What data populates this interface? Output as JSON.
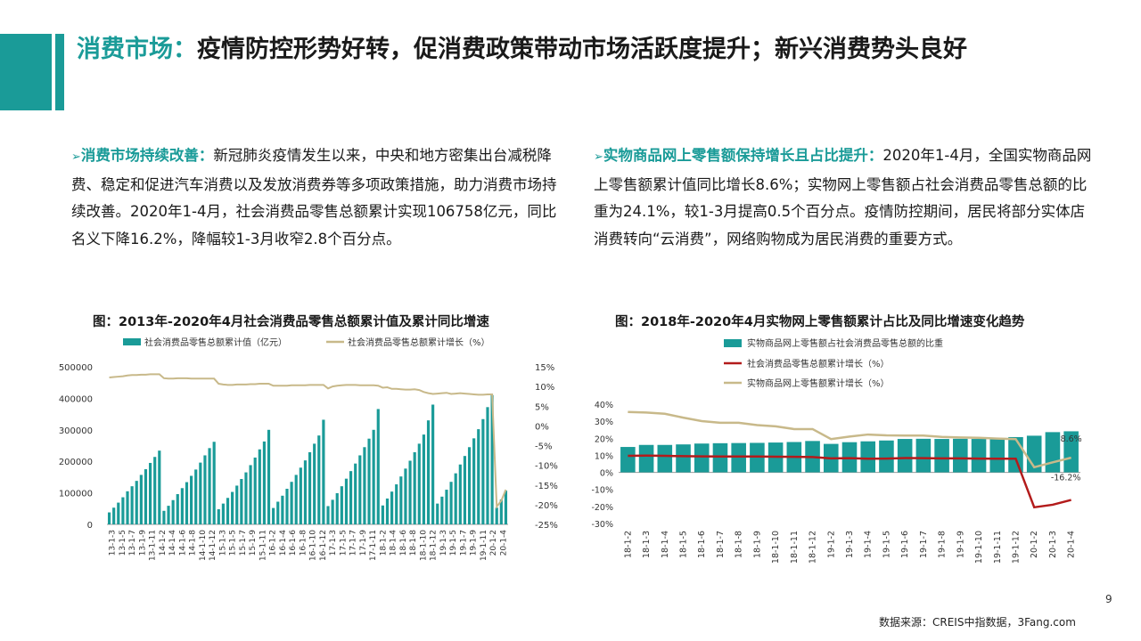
{
  "header": {
    "title_highlight": "消费市场：",
    "title_rest": "疫情防控形势好转，促消费政策带动市场活跃度提升；新兴消费势头良好"
  },
  "left_text": {
    "arrow": "➢",
    "lead": "消费市场持续改善：",
    "body": "新冠肺炎疫情发生以来，中央和地方密集出台减税降费、稳定和促进汽车消费以及发放消费券等多项政策措施，助力消费市场持续改善。2020年1-4月，社会消费品零售总额累计实现106758亿元，同比名义下降16.2%，降幅较1-3月收窄2.8个百分点。"
  },
  "right_text": {
    "arrow": "➢",
    "lead": "实物商品网上零售额保持增长且占比提升：",
    "body": "2020年1-4月，全国实物商品网上零售额累计值同比增长8.6%；实物网上零售额占社会消费品零售总额的比重为24.1%，较1-3月提高0.5个百分点。疫情防控期间，居民将部分实体店消费转向“云消费”，网络购物成为居民消费的重要方式。"
  },
  "colors": {
    "teal": "#1a9b98",
    "tan": "#c8b98a",
    "darkred": "#b31b1b"
  },
  "chart_data": [
    {
      "type": "bar",
      "title": "图：2013年-2020年4月社会消费品零售总额累计值及累计同比增速",
      "legend": [
        "社会消费品零售总额累计值（亿元）",
        "社会消费品零售总额累计增长（%）"
      ],
      "y_ticks": [
        "500000",
        "400000",
        "300000",
        "200000",
        "100000",
        "0"
      ],
      "y2_ticks": [
        "15%",
        "10%",
        "5%",
        "0%",
        "-5%",
        "-10%",
        "-15%",
        "-20%",
        "-25%"
      ],
      "ylim": [
        0,
        500000
      ],
      "y2lim": [
        -25,
        15
      ],
      "x_labels": [
        "13-1-3",
        "13-1-5",
        "13-1-7",
        "13-1-9",
        "13-1-11",
        "14-1-2",
        "14-1-4",
        "14-1-6",
        "14-1-8",
        "14-1-10",
        "14-1-12",
        "15-1-3",
        "15-1-5",
        "15-1-7",
        "15-1-9",
        "15-1-11",
        "16-1-2",
        "16-1-4",
        "16-1-6",
        "16-1-8",
        "16-1-10",
        "16-1-12",
        "17-1-3",
        "17-1-5",
        "17-1-7",
        "17-1-9",
        "17-1-11",
        "18-1-2",
        "18-1-4",
        "18-1-6",
        "18-1-8",
        "18-1-10",
        "18-1-12",
        "19-1-3",
        "19-1-5",
        "19-1-7",
        "19-1-9",
        "19-1-11",
        "20-1-2",
        "20-1-4"
      ],
      "values": [
        38000,
        53000,
        69000,
        86000,
        105000,
        121000,
        138000,
        157000,
        175000,
        195000,
        214000,
        234000,
        43000,
        59000,
        77000,
        96000,
        115000,
        134000,
        154000,
        174000,
        196000,
        219000,
        242000,
        262000,
        48000,
        66000,
        84000,
        103000,
        123000,
        144000,
        165000,
        188000,
        212000,
        238000,
        263000,
        300000,
        52000,
        72000,
        91000,
        113000,
        135000,
        157000,
        180000,
        203000,
        229000,
        256000,
        282000,
        332000,
        58000,
        78000,
        99000,
        121000,
        145000,
        169000,
        193000,
        219000,
        245000,
        272000,
        300000,
        366000,
        60000,
        82000,
        104000,
        127000,
        152000,
        177000,
        202000,
        229000,
        256000,
        285000,
        330000,
        380000,
        66000,
        88000,
        110000,
        135000,
        162000,
        190000,
        217000,
        245000,
        273000,
        302000,
        334000,
        372000,
        410000,
        53000,
        79000,
        107000
      ],
      "growth": [
        12.3,
        12.4,
        12.5,
        12.6,
        12.8,
        12.9,
        12.9,
        13.0,
        13.0,
        13.1,
        13.1,
        13.1,
        12.1,
        12.0,
        12.0,
        12.1,
        12.1,
        12.1,
        12.0,
        12.0,
        12.0,
        12.0,
        12.0,
        12.0,
        10.7,
        10.5,
        10.4,
        10.4,
        10.5,
        10.5,
        10.5,
        10.6,
        10.6,
        10.7,
        10.7,
        10.7,
        10.2,
        10.2,
        10.2,
        10.2,
        10.3,
        10.3,
        10.3,
        10.3,
        10.4,
        10.4,
        10.4,
        10.4,
        9.5,
        10.0,
        10.2,
        10.3,
        10.4,
        10.4,
        10.4,
        10.3,
        10.3,
        10.3,
        10.3,
        10.2,
        9.7,
        9.8,
        9.4,
        9.4,
        9.3,
        9.2,
        9.2,
        9.3,
        9.1,
        8.6,
        8.3,
        8.1,
        8.2,
        8.3,
        8.4,
        8.1,
        8.2,
        8.3,
        8.2,
        8.1,
        8.0,
        7.9,
        7.9,
        8.0,
        8.0,
        -20.5,
        -19.0,
        -16.2
      ]
    },
    {
      "type": "bar",
      "title": "图：2018年-2020年4月实物网上零售额累计占比及同比增速变化趋势",
      "legend": [
        "实物商品网上零售额占社会消费品零售总额的比重",
        "社会消费品零售总额累计增长（%）",
        "实物商品网上零售额累计增长（%）"
      ],
      "y_ticks": [
        "40%",
        "30%",
        "20%",
        "10%",
        "0%",
        "-10%",
        "-20%",
        "-30%"
      ],
      "ylim": [
        -30,
        40
      ],
      "x_labels": [
        "18-1-2",
        "18-1-3",
        "18-1-4",
        "18-1-5",
        "18-1-6",
        "18-1-7",
        "18-1-8",
        "18-1-9",
        "18-1-10",
        "18-1-11",
        "18-1-12",
        "19-1-2",
        "19-1-3",
        "19-1-4",
        "19-1-5",
        "19-1-6",
        "19-1-7",
        "19-1-8",
        "19-1-9",
        "19-1-10",
        "19-1-11",
        "19-1-12",
        "20-1-2",
        "20-1-3",
        "20-1-4"
      ],
      "share": [
        14.9,
        16.1,
        16.1,
        16.4,
        16.9,
        17.1,
        17.2,
        17.3,
        17.5,
        17.8,
        18.4,
        16.7,
        17.7,
        18.2,
        18.7,
        19.6,
        19.7,
        19.6,
        19.7,
        19.6,
        19.8,
        20.7,
        21.5,
        23.6,
        24.1
      ],
      "retail_growth": [
        9.7,
        9.8,
        9.7,
        9.5,
        9.4,
        9.3,
        9.3,
        9.3,
        9.2,
        9.1,
        9.0,
        8.2,
        8.3,
        8.0,
        8.1,
        8.4,
        8.3,
        8.2,
        8.2,
        8.1,
        8.0,
        8.0,
        -20.5,
        -19.0,
        -16.2
      ],
      "online_growth": [
        35.4,
        35.1,
        34.4,
        32.1,
        30.1,
        29.1,
        29.1,
        27.7,
        27.0,
        25.4,
        25.4,
        19.5,
        21.0,
        22.2,
        21.7,
        21.6,
        21.6,
        20.8,
        20.5,
        20.3,
        19.8,
        19.5,
        3.0,
        5.9,
        8.6
      ],
      "annotations": [
        "8.6%",
        "-16.2%"
      ]
    }
  ],
  "page_number": "9",
  "source": "数据来源：CREIS中指数据，3Fang.com"
}
